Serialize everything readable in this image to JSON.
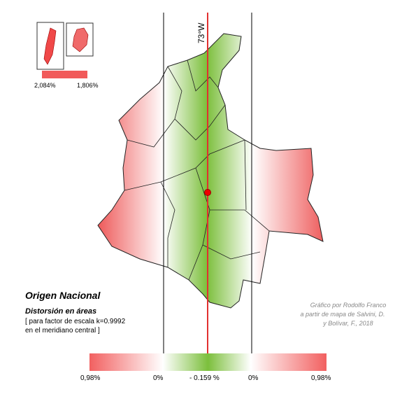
{
  "map": {
    "meridian_label": "73°W",
    "inset_labels": [
      "2,084%",
      "1,806%"
    ],
    "title": "Origen Nacional",
    "subtitle": "Distorsión en áreas",
    "note": [
      "[ para factor de escala k=0.9992",
      "en el meridiano central ]"
    ],
    "credit": [
      "Gráfico por Rodolfo Franco",
      "a partir de mapa de Salvini, D.",
      "y Bolívar, F., 2018"
    ],
    "colorbar_labels": [
      "0,98%",
      "0%",
      "- 0.159 %",
      "0%",
      "0,98%"
    ]
  }
}
